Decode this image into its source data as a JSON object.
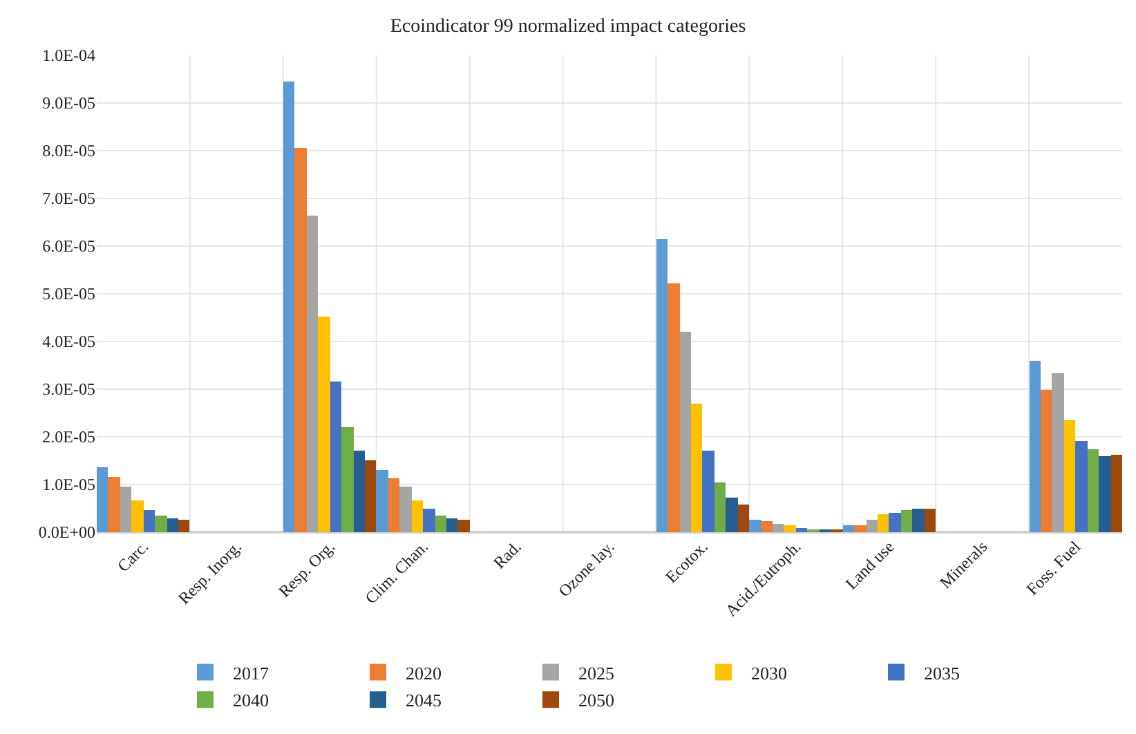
{
  "chart_data": {
    "type": "bar",
    "title": "Ecoindicator 99 normalized impact categories",
    "categories": [
      "Carc.",
      "Resp. Inorg.",
      "Resp. Org.",
      "Clim. Chan.",
      "Rad.",
      "Ozone lay.",
      "Ecotox.",
      "Acid./Eutroph.",
      "Land use",
      "Minerals",
      "Foss. Fuel"
    ],
    "series": [
      {
        "name": "2017",
        "color": "#5b9bd5",
        "values": [
          1.35e-05,
          0,
          9.45e-05,
          1.3e-05,
          0,
          0,
          6.15e-05,
          2.5e-06,
          1.4e-06,
          0,
          3.58e-05
        ]
      },
      {
        "name": "2020",
        "color": "#ed7d31",
        "values": [
          1.15e-05,
          0,
          8.05e-05,
          1.13e-05,
          0,
          0,
          5.22e-05,
          2.2e-06,
          1.5e-06,
          0,
          3e-05
        ]
      },
      {
        "name": "2025",
        "color": "#a5a5a5",
        "values": [
          9.7e-06,
          0,
          6.65e-05,
          9.7e-06,
          0,
          0,
          4.2e-05,
          1.8e-06,
          2.5e-06,
          0,
          3.33e-05
        ]
      },
      {
        "name": "2030",
        "color": "#ffc000",
        "values": [
          6.7e-06,
          0,
          4.52e-05,
          6.7e-06,
          0,
          0,
          2.7e-05,
          1.4e-06,
          3.7e-06,
          0,
          2.35e-05
        ]
      },
      {
        "name": "2035",
        "color": "#4472c4",
        "values": [
          4.7e-06,
          0,
          3.15e-05,
          4.8e-06,
          0,
          0,
          1.7e-05,
          1e-06,
          4.2e-06,
          0,
          1.9e-05
        ]
      },
      {
        "name": "2040",
        "color": "#70ad47",
        "values": [
          3.5e-06,
          0,
          2.2e-05,
          3.6e-06,
          0,
          0,
          1.03e-05,
          7e-07,
          4.7e-06,
          0,
          1.73e-05
        ]
      },
      {
        "name": "2045",
        "color": "#255e91",
        "values": [
          2.8e-06,
          0,
          1.7e-05,
          2.8e-06,
          0,
          0,
          7.2e-06,
          5e-07,
          5e-06,
          0,
          1.6e-05
        ]
      },
      {
        "name": "2050",
        "color": "#9e480e",
        "values": [
          2.5e-06,
          0,
          1.5e-05,
          2.7e-06,
          0,
          0,
          5.7e-06,
          5e-07,
          5e-06,
          0,
          1.63e-05
        ]
      }
    ],
    "ylim": [
      0,
      0.0001
    ],
    "yticks": [
      {
        "value": 0,
        "label": "0.0E+00"
      },
      {
        "value": 1e-05,
        "label": "1.0E-05"
      },
      {
        "value": 2e-05,
        "label": "2.0E-05"
      },
      {
        "value": 3e-05,
        "label": "3.0E-05"
      },
      {
        "value": 4e-05,
        "label": "4.0E-05"
      },
      {
        "value": 5e-05,
        "label": "5.0E-05"
      },
      {
        "value": 6e-05,
        "label": "6.0E-05"
      },
      {
        "value": 7e-05,
        "label": "7.0E-05"
      },
      {
        "value": 8e-05,
        "label": "8.0E-05"
      },
      {
        "value": 9e-05,
        "label": "9.0E-05"
      },
      {
        "value": 0.0001,
        "label": "1.0E-04"
      }
    ],
    "grid": true,
    "legend": "bottom"
  }
}
